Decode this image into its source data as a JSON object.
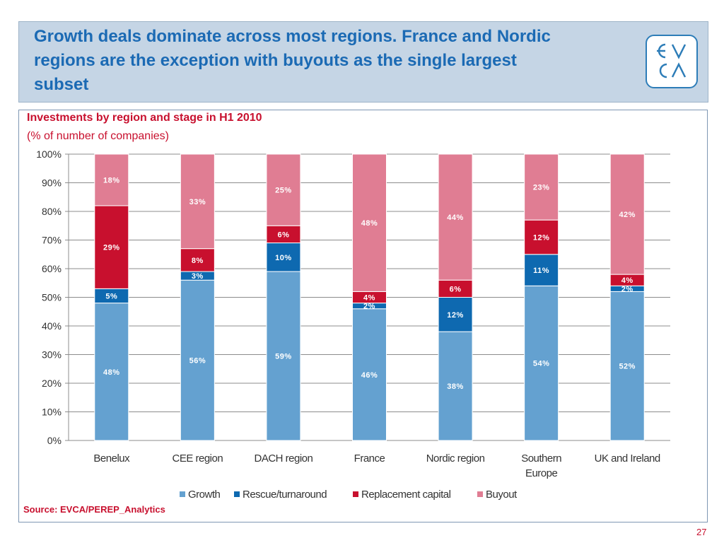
{
  "header": {
    "title": "Growth deals dominate across most regions. France and Nordic\nregions are the exception with buyouts as the single largest\nsubset",
    "logo_text": "EVCA"
  },
  "chart_data": {
    "type": "bar",
    "stacked": true,
    "title": "Investments by region and stage in H1 2010",
    "subtitle": "(% of number of companies)",
    "xlabel": "",
    "ylabel": "",
    "ylim": [
      0,
      100
    ],
    "yticks": [
      "0%",
      "10%",
      "20%",
      "30%",
      "40%",
      "50%",
      "60%",
      "70%",
      "80%",
      "90%",
      "100%"
    ],
    "grid": true,
    "legend_position": "bottom",
    "categories": [
      "Benelux",
      "CEE region",
      "DACH region",
      "France",
      "Nordic region",
      "Southern\nEurope",
      "UK and Ireland"
    ],
    "series": [
      {
        "name": "Growth",
        "color": "#64a1d0",
        "values": [
          48,
          56,
          59,
          46,
          38,
          54,
          52
        ]
      },
      {
        "name": "Rescue/turnaround",
        "color": "#0e69b0",
        "values": [
          5,
          3,
          10,
          2,
          12,
          11,
          2
        ]
      },
      {
        "name": "Replacement capital",
        "color": "#c8102e",
        "values": [
          29,
          8,
          6,
          4,
          6,
          12,
          4
        ]
      },
      {
        "name": "Buyout",
        "color": "#e07d93",
        "values": [
          18,
          33,
          25,
          48,
          44,
          23,
          42
        ]
      }
    ]
  },
  "footer": {
    "source": "Source: EVCA/PEREP_Analytics",
    "page_number": "27"
  },
  "colors": {
    "title_blue": "#1b6ab4",
    "accent_red": "#c8102e",
    "header_bg": "#c5d5e5"
  }
}
